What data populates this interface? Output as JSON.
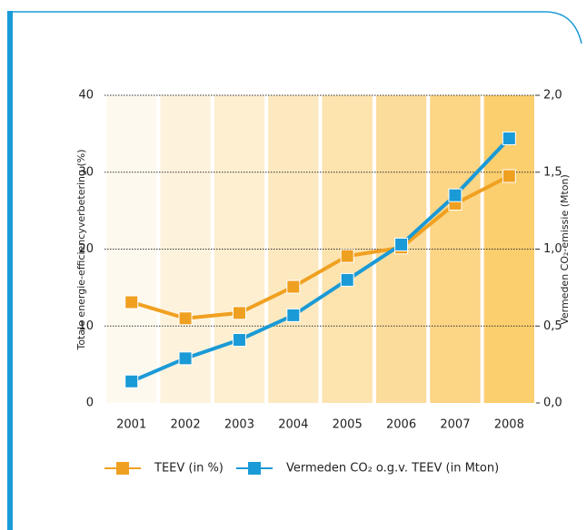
{
  "chart_data": {
    "type": "line",
    "categories": [
      "2001",
      "2002",
      "2003",
      "2004",
      "2005",
      "2006",
      "2007",
      "2008"
    ],
    "series": [
      {
        "name": "TEEV (in %)",
        "color": "#f0a020",
        "values": [
          13.1,
          11.0,
          11.7,
          15.1,
          19.1,
          20.2,
          25.9,
          29.5
        ]
      },
      {
        "name": "Vermeden CO₂ o.g.v. TEEV (in Mton)",
        "color": "#1a9ad6",
        "axis": "y2",
        "values": [
          0.14,
          0.29,
          0.41,
          0.57,
          0.8,
          1.03,
          1.35,
          1.72
        ]
      }
    ],
    "ylabel": "Totale energie-efficiencyverbetering (%)",
    "y2label": "Vermeden CO₂-emissie (Mton)",
    "ylim": [
      0,
      40
    ],
    "yticks": [
      0,
      10,
      20,
      30,
      40
    ],
    "y2lim": [
      0,
      2
    ],
    "y2ticks": [
      {
        "value": 0,
        "label": "0,0"
      },
      {
        "value": 0.5,
        "label": "0,5"
      },
      {
        "value": 1,
        "label": "1,0"
      },
      {
        "value": 1.5,
        "label": "1,5"
      },
      {
        "value": 2,
        "label": "2,0"
      }
    ],
    "grid": true,
    "band_colors": [
      "#fef9ef",
      "#fdf3dd",
      "#fdefd0",
      "#fde9bf",
      "#fde3ae",
      "#fcdc9b",
      "#fcd585",
      "#fbce6e"
    ]
  }
}
